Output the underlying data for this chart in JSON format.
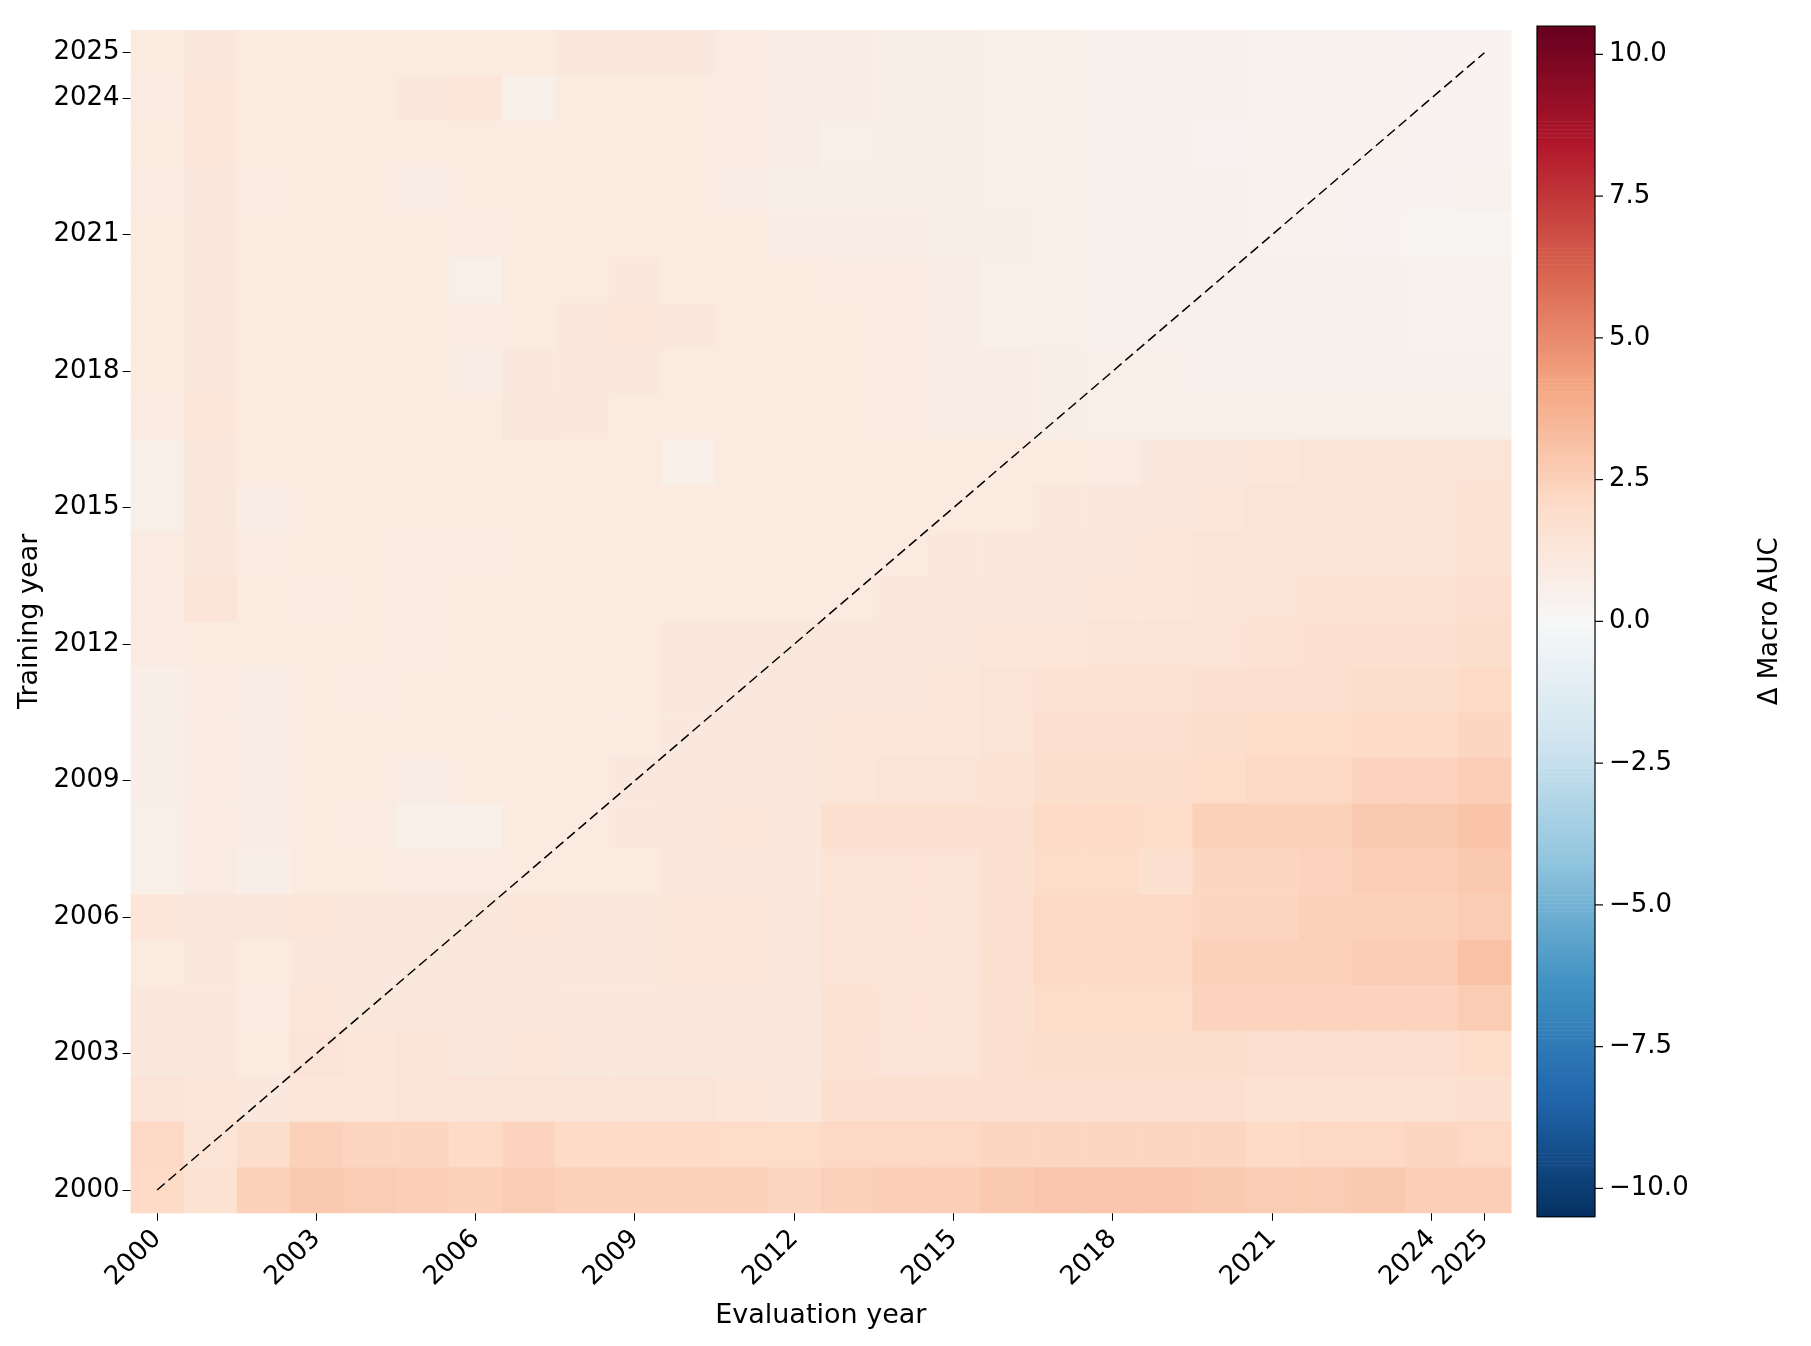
{
  "chart_data": {
    "type": "heatmap",
    "xlabel": "Evaluation year",
    "ylabel": "Training year",
    "clabel": "Δ Macro AUC",
    "categories": [
      "2000",
      null,
      null,
      "2003",
      null,
      null,
      "2006",
      null,
      null,
      "2009",
      null,
      null,
      "2012",
      null,
      null,
      "2015",
      null,
      null,
      "2018",
      null,
      null,
      "2021",
      null,
      null,
      "2024",
      "2025"
    ],
    "y_categories": [
      "2025",
      "2024",
      null,
      null,
      "2021",
      null,
      null,
      "2018",
      null,
      null,
      "2015",
      null,
      null,
      "2012",
      null,
      null,
      "2009",
      null,
      null,
      "2006",
      null,
      null,
      "2003",
      null,
      null,
      "2000"
    ],
    "cells": [
      [
        1.0,
        1.1,
        1.0,
        1.0,
        1.0,
        1.0,
        1.0,
        1.0,
        1.1,
        1.1,
        1.1,
        0.9,
        0.8,
        0.8,
        0.7,
        0.7,
        0.6,
        0.6,
        0.5,
        0.5,
        0.5,
        0.4,
        0.4,
        0.4,
        0.3,
        0.3
      ],
      [
        0.9,
        1.3,
        1.0,
        1.0,
        1.0,
        1.1,
        1.3,
        0.6,
        1.0,
        1.0,
        1.0,
        0.9,
        0.8,
        0.8,
        0.7,
        0.7,
        0.6,
        0.6,
        0.5,
        0.5,
        0.5,
        0.4,
        0.4,
        0.4,
        0.3,
        0.3
      ],
      [
        1.0,
        1.3,
        1.0,
        1.0,
        1.0,
        1.0,
        1.0,
        1.0,
        1.0,
        1.0,
        1.0,
        0.9,
        0.8,
        0.6,
        0.7,
        0.7,
        0.6,
        0.6,
        0.5,
        0.5,
        0.3,
        0.4,
        0.4,
        0.4,
        0.3,
        0.3
      ],
      [
        0.9,
        1.1,
        0.9,
        1.0,
        1.0,
        0.8,
        1.0,
        1.0,
        1.0,
        1.0,
        1.0,
        0.8,
        0.7,
        0.7,
        0.7,
        0.7,
        0.6,
        0.6,
        0.5,
        0.5,
        0.5,
        0.4,
        0.4,
        0.3,
        0.3,
        0.4
      ],
      [
        1.0,
        1.1,
        1.0,
        1.0,
        1.0,
        1.0,
        0.9,
        1.0,
        1.0,
        1.0,
        1.0,
        1.0,
        0.8,
        0.8,
        0.8,
        0.7,
        0.7,
        0.6,
        0.5,
        0.5,
        0.5,
        0.4,
        0.4,
        0.3,
        0.2,
        0.2
      ],
      [
        1.0,
        1.1,
        1.0,
        1.0,
        1.0,
        1.0,
        0.6,
        1.0,
        1.0,
        1.1,
        1.0,
        1.0,
        1.0,
        0.9,
        0.9,
        0.8,
        0.6,
        0.6,
        0.5,
        0.5,
        0.5,
        0.5,
        0.5,
        0.5,
        0.4,
        0.4
      ],
      [
        1.0,
        1.1,
        1.0,
        1.0,
        1.0,
        1.0,
        0.9,
        1.0,
        1.2,
        1.3,
        1.1,
        1.0,
        1.0,
        1.0,
        0.9,
        0.8,
        0.6,
        0.6,
        0.5,
        0.5,
        0.5,
        0.5,
        0.5,
        0.5,
        0.4,
        0.4
      ],
      [
        1.0,
        1.2,
        1.0,
        1.0,
        1.0,
        1.0,
        0.8,
        1.1,
        1.1,
        1.1,
        1.0,
        1.0,
        1.0,
        1.0,
        0.9,
        0.8,
        0.8,
        0.7,
        0.6,
        0.6,
        0.5,
        0.5,
        0.5,
        0.5,
        0.5,
        0.5
      ],
      [
        0.9,
        1.3,
        1.0,
        1.0,
        1.0,
        1.0,
        1.0,
        1.2,
        1.1,
        1.0,
        1.0,
        1.0,
        1.0,
        1.0,
        0.9,
        0.8,
        0.8,
        0.7,
        0.6,
        0.6,
        0.6,
        0.6,
        0.6,
        0.6,
        0.6,
        0.6
      ],
      [
        0.6,
        1.1,
        1.0,
        1.0,
        1.0,
        1.0,
        1.0,
        1.0,
        1.0,
        1.0,
        0.6,
        1.0,
        1.0,
        1.0,
        1.0,
        1.0,
        1.0,
        1.0,
        0.9,
        1.1,
        1.2,
        1.3,
        1.4,
        1.4,
        1.4,
        1.5
      ],
      [
        0.6,
        1.2,
        0.8,
        1.0,
        1.0,
        1.0,
        1.0,
        1.0,
        1.0,
        1.0,
        1.0,
        1.0,
        1.0,
        1.0,
        1.0,
        1.0,
        1.0,
        1.1,
        1.1,
        1.2,
        1.3,
        1.4,
        1.5,
        1.5,
        1.5,
        1.6
      ],
      [
        0.9,
        1.2,
        0.9,
        1.0,
        1.0,
        0.9,
        0.9,
        1.0,
        1.0,
        1.0,
        1.0,
        1.0,
        1.0,
        1.0,
        1.0,
        1.1,
        1.1,
        1.2,
        1.2,
        1.3,
        1.4,
        1.5,
        1.5,
        1.5,
        1.5,
        1.6
      ],
      [
        0.9,
        1.4,
        1.0,
        0.9,
        1.0,
        0.9,
        1.0,
        1.0,
        1.0,
        1.0,
        1.0,
        1.0,
        1.0,
        1.0,
        1.1,
        1.1,
        1.2,
        1.2,
        1.3,
        1.3,
        1.4,
        1.5,
        1.6,
        1.6,
        1.6,
        1.8
      ],
      [
        0.9,
        1.0,
        1.0,
        1.0,
        1.0,
        0.9,
        1.0,
        1.0,
        1.0,
        1.0,
        1.1,
        1.1,
        1.2,
        1.2,
        1.2,
        1.2,
        1.3,
        1.3,
        1.4,
        1.4,
        1.5,
        1.6,
        1.7,
        1.7,
        1.7,
        1.9
      ],
      [
        0.7,
        0.9,
        0.8,
        1.0,
        0.9,
        1.0,
        1.0,
        1.0,
        1.0,
        1.0,
        1.1,
        1.1,
        1.2,
        1.2,
        1.2,
        1.3,
        1.4,
        1.6,
        1.6,
        1.6,
        1.7,
        1.8,
        1.8,
        1.9,
        1.9,
        2.1
      ],
      [
        0.7,
        0.9,
        0.8,
        1.0,
        1.0,
        1.0,
        1.0,
        1.0,
        1.0,
        1.0,
        1.1,
        1.2,
        1.2,
        1.3,
        1.3,
        1.3,
        1.5,
        1.8,
        1.8,
        1.8,
        1.9,
        2.0,
        2.0,
        2.1,
        2.1,
        2.3
      ],
      [
        0.7,
        0.9,
        0.8,
        1.0,
        1.0,
        0.8,
        1.0,
        1.0,
        1.0,
        1.1,
        1.1,
        1.2,
        1.2,
        1.3,
        1.4,
        1.4,
        1.6,
        1.9,
        1.9,
        1.9,
        2.0,
        2.2,
        2.2,
        2.4,
        2.4,
        2.6
      ],
      [
        0.6,
        0.9,
        0.8,
        1.0,
        0.9,
        0.6,
        0.6,
        1.0,
        1.0,
        1.1,
        1.2,
        1.3,
        1.2,
        1.7,
        1.7,
        1.7,
        1.7,
        2.1,
        2.1,
        2.0,
        2.5,
        2.5,
        2.5,
        2.8,
        2.8,
        3.0
      ],
      [
        0.6,
        0.9,
        0.7,
        1.0,
        1.0,
        0.9,
        0.9,
        1.0,
        1.0,
        1.0,
        1.1,
        1.1,
        1.1,
        1.5,
        1.5,
        1.5,
        1.7,
        2.0,
        2.0,
        1.7,
        2.3,
        2.3,
        2.4,
        2.6,
        2.6,
        2.8
      ],
      [
        1.3,
        1.2,
        1.2,
        1.3,
        1.2,
        1.2,
        1.2,
        1.3,
        1.2,
        1.2,
        1.3,
        1.3,
        1.2,
        1.5,
        1.5,
        1.5,
        1.7,
        2.2,
        2.2,
        2.2,
        2.3,
        2.3,
        2.5,
        2.5,
        2.5,
        2.7
      ],
      [
        1.0,
        1.1,
        1.0,
        1.1,
        1.1,
        1.2,
        1.2,
        1.2,
        1.2,
        1.2,
        1.3,
        1.3,
        1.2,
        1.4,
        1.5,
        1.4,
        1.7,
        2.2,
        2.2,
        2.2,
        2.5,
        2.5,
        2.5,
        2.7,
        2.7,
        3.1
      ],
      [
        1.1,
        1.1,
        0.9,
        1.3,
        1.2,
        1.2,
        1.2,
        1.2,
        1.1,
        1.1,
        1.2,
        1.2,
        1.2,
        1.6,
        1.5,
        1.5,
        1.7,
        2.0,
        2.0,
        2.0,
        2.4,
        2.4,
        2.4,
        2.4,
        2.4,
        2.7
      ],
      [
        1.2,
        1.2,
        1.0,
        1.4,
        1.3,
        1.5,
        1.2,
        1.3,
        1.2,
        1.2,
        1.2,
        1.2,
        1.2,
        1.6,
        1.4,
        1.5,
        1.7,
        1.9,
        1.9,
        1.9,
        1.9,
        1.8,
        1.8,
        1.8,
        1.8,
        2.0
      ],
      [
        1.4,
        1.3,
        1.1,
        1.3,
        1.3,
        1.4,
        1.4,
        1.5,
        1.4,
        1.4,
        1.4,
        1.3,
        1.2,
        1.7,
        1.7,
        1.7,
        1.8,
        1.8,
        1.8,
        1.8,
        1.8,
        1.6,
        1.6,
        1.6,
        1.6,
        1.7
      ],
      [
        2.2,
        1.5,
        1.9,
        2.5,
        2.3,
        2.3,
        2.1,
        2.4,
        2.1,
        2.1,
        2.1,
        2.0,
        2.0,
        2.2,
        2.2,
        2.2,
        2.3,
        2.3,
        2.3,
        2.3,
        2.3,
        2.1,
        2.2,
        2.2,
        2.3,
        2.2
      ],
      [
        2.1,
        1.6,
        2.5,
        2.8,
        2.7,
        2.6,
        2.5,
        2.7,
        2.5,
        2.5,
        2.5,
        2.5,
        2.3,
        2.5,
        2.6,
        2.6,
        2.8,
        2.9,
        2.9,
        2.9,
        2.8,
        2.7,
        2.7,
        2.8,
        2.6,
        2.6
      ]
    ],
    "clim": [
      -10.5,
      10.5
    ],
    "cticks": [
      {
        "value": -10,
        "label": "−10.0"
      },
      {
        "value": -7.5,
        "label": "−7.5"
      },
      {
        "value": -5,
        "label": "−5.0"
      },
      {
        "value": -2.5,
        "label": "−2.5"
      },
      {
        "value": 0,
        "label": "0.0"
      },
      {
        "value": 2.5,
        "label": "2.5"
      },
      {
        "value": 5,
        "label": "5.0"
      },
      {
        "value": 7.5,
        "label": "7.5"
      },
      {
        "value": 10,
        "label": "10.0"
      }
    ],
    "series": [
      {
        "type": "line",
        "values": [
          25,
          24,
          23,
          22,
          21,
          20,
          19,
          18,
          17,
          16,
          15,
          14,
          13,
          12,
          11,
          10,
          9,
          8,
          7,
          6,
          5,
          4,
          3,
          2,
          1,
          0
        ],
        "color": "#000000",
        "line_style": "dashed"
      }
    ]
  }
}
